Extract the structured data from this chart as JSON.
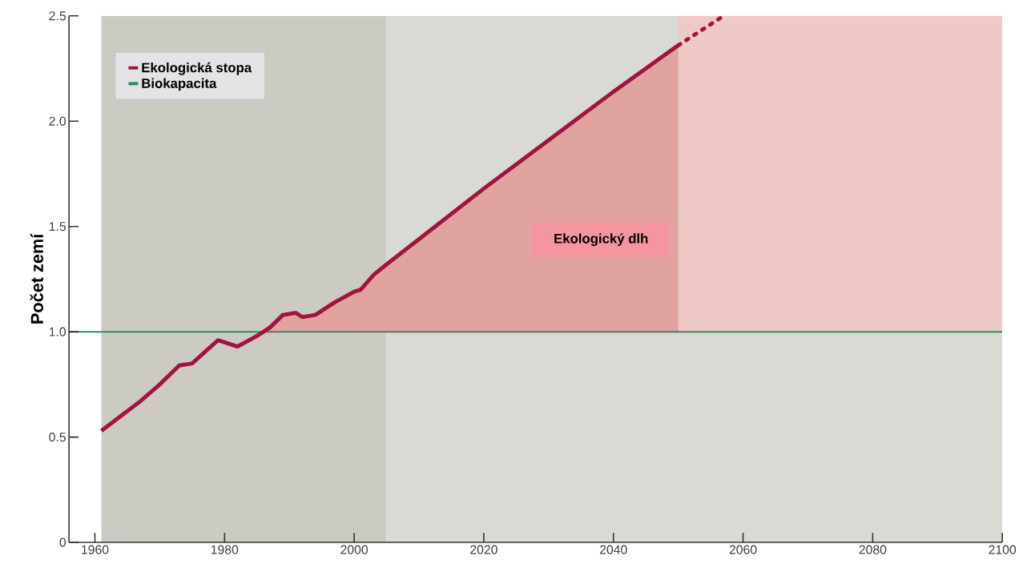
{
  "chart_data": {
    "type": "line",
    "ylabel": "Počet zemí",
    "xlim": [
      1956,
      2100
    ],
    "xticks": [
      1960,
      1980,
      2000,
      2020,
      2040,
      2060,
      2080,
      2100
    ],
    "ylim": [
      0,
      2.5
    ],
    "yticks": [
      0,
      0.5,
      {
        "value": 1,
        "label": "1.0"
      },
      1.5,
      {
        "value": 2,
        "label": "2.0"
      },
      2.5
    ],
    "legend": "top left",
    "grid": false,
    "series": [
      {
        "name": "Ekologická stopa",
        "color": "#a3133f",
        "x": [
          1961,
          1964,
          1967,
          1970,
          1973,
          1975,
          1979,
          1982,
          1985,
          1986,
          1987,
          1989,
          1991,
          1992,
          1994,
          1997,
          2000,
          2001,
          2003,
          2005,
          2010,
          2020,
          2030,
          2040,
          2050
        ],
        "values": [
          0.53,
          0.6,
          0.67,
          0.75,
          0.84,
          0.85,
          0.96,
          0.93,
          0.98,
          1.0,
          1.02,
          1.08,
          1.09,
          1.07,
          1.08,
          1.14,
          1.19,
          1.2,
          1.27,
          1.32,
          1.44,
          1.68,
          1.91,
          2.14,
          2.36
        ],
        "lower": [
          null,
          null,
          null,
          null,
          null,
          null,
          null,
          null,
          null,
          1,
          1,
          1,
          1,
          1,
          1,
          1,
          1,
          1,
          1,
          1,
          1,
          1,
          1,
          1,
          1
        ],
        "upper": [
          null,
          null,
          null,
          null,
          null,
          null,
          null,
          null,
          null,
          1.0,
          1.02,
          1.08,
          1.09,
          1.07,
          1.08,
          1.14,
          1.19,
          1.2,
          1.27,
          1.32,
          1.44,
          1.68,
          1.91,
          2.14,
          2.36
        ]
      },
      {
        "color": "#a3133f",
        "line_style": "dashed",
        "x": [
          2050,
          2057
        ],
        "values": [
          2.36,
          2.5
        ]
      },
      {
        "name": "Biokapacita",
        "color": "#2e8b57",
        "x": [
          1956,
          2100
        ],
        "values": [
          1,
          1
        ]
      }
    ],
    "bands": [
      {
        "axis": "x",
        "from": 1961,
        "to": 2005,
        "color": "#cbcbc3"
      },
      {
        "axis": "x",
        "from": 2005,
        "to": 2100,
        "color": "#dadad5"
      },
      {
        "axis": "x",
        "from": 2050,
        "to": 2100,
        "color": "#efc9c6"
      }
    ],
    "annotations": [
      "Ekologický dlh"
    ]
  }
}
